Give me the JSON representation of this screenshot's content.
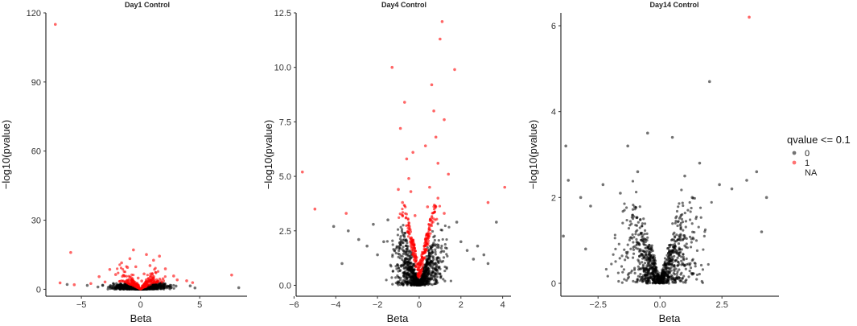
{
  "legend": {
    "title": "qvalue <= 0.1",
    "entries": [
      {
        "label": "0",
        "color": "#000000"
      },
      {
        "label": "1",
        "color": "#ff0000"
      },
      {
        "label": "NA",
        "color": null
      }
    ]
  },
  "colors": {
    "sig0": "#000000",
    "sig1": "#ff0000"
  },
  "chart_data": [
    {
      "type": "scatter",
      "title": "Day1 Control",
      "xlabel": "Beta",
      "ylabel": "−log10(pvalue)",
      "xlim": [
        -8,
        9
      ],
      "ylim": [
        -3,
        120
      ],
      "xticks": [
        -5,
        0,
        5
      ],
      "xtick_labels": [
        "−5",
        "0",
        "5"
      ],
      "yticks": [
        0,
        30,
        60,
        90,
        120
      ],
      "ytick_labels": [
        "0",
        "30",
        "60",
        "90",
        "120"
      ],
      "points_black": [
        [
          -3.2,
          1.8
        ],
        [
          -2.5,
          1.5
        ],
        [
          -1.8,
          1.2
        ],
        [
          2.0,
          1.6
        ],
        [
          3.0,
          1.4
        ],
        [
          4.2,
          1.5
        ],
        [
          4.6,
          0.6
        ],
        [
          -4.5,
          1.7
        ],
        [
          -6.2,
          2.1
        ],
        [
          8.3,
          0.7
        ],
        [
          -3.6,
          1.0
        ],
        [
          1.2,
          0.8
        ],
        [
          -0.8,
          0.9
        ],
        [
          0.7,
          1.1
        ],
        [
          2.6,
          0.9
        ]
      ],
      "points_red": [
        [
          -7.2,
          115
        ],
        [
          -5.9,
          16
        ],
        [
          -4.2,
          2.5
        ],
        [
          -3.5,
          5.5
        ],
        [
          -2.6,
          8.6
        ],
        [
          -2.1,
          6.4
        ],
        [
          -1.6,
          11.5
        ],
        [
          -1.1,
          9.5
        ],
        [
          -0.9,
          13.3
        ],
        [
          -0.6,
          17.1
        ],
        [
          -0.4,
          9.8
        ],
        [
          -0.2,
          4.9
        ],
        [
          0.3,
          6.7
        ],
        [
          0.5,
          15.1
        ],
        [
          0.8,
          10.3
        ],
        [
          1.1,
          12.6
        ],
        [
          1.3,
          7.2
        ],
        [
          1.6,
          14.4
        ],
        [
          2.1,
          8.9
        ],
        [
          2.8,
          5.8
        ],
        [
          3.1,
          4.1
        ],
        [
          3.9,
          3.7
        ],
        [
          4.4,
          2.9
        ],
        [
          7.7,
          6.2
        ],
        [
          -5.6,
          2.0
        ],
        [
          -6.8,
          2.8
        ],
        [
          -3.0,
          3.2
        ],
        [
          -1.4,
          5.8
        ],
        [
          0.1,
          3.6
        ],
        [
          1.9,
          4.6
        ]
      ],
      "density": {
        "x_extent": [
          -6.5,
          5.0
        ],
        "y_max_black": 3,
        "y_max_red": 12,
        "seed": 11
      }
    },
    {
      "type": "scatter",
      "title": "Day4 Control",
      "xlabel": "Beta",
      "ylabel": "−log10(pvalue)",
      "xlim": [
        -5.9,
        4.4
      ],
      "ylim": [
        -0.5,
        12.5
      ],
      "xticks": [
        -6,
        -4,
        -2,
        0,
        2,
        4
      ],
      "xtick_labels": [
        "−6",
        "−4",
        "−2",
        "0",
        "2",
        "4"
      ],
      "yticks": [
        0.0,
        2.5,
        5.0,
        7.5,
        10.0,
        12.5
      ],
      "ytick_labels": [
        "0.0",
        "2.5",
        "5.0",
        "7.5",
        "10.0",
        "12.5"
      ],
      "points_black": [
        [
          -4.1,
          2.7
        ],
        [
          -3.4,
          2.5
        ],
        [
          -2.9,
          2.1
        ],
        [
          -2.5,
          1.8
        ],
        [
          -2.2,
          2.8
        ],
        [
          -2.0,
          1.4
        ],
        [
          -1.7,
          2.0
        ],
        [
          2.0,
          2.0
        ],
        [
          2.3,
          1.6
        ],
        [
          2.6,
          1.2
        ],
        [
          2.8,
          1.8
        ],
        [
          3.1,
          1.4
        ],
        [
          3.3,
          1.0
        ],
        [
          3.7,
          2.9
        ],
        [
          -3.7,
          1.0
        ],
        [
          1.8,
          2.9
        ],
        [
          -1.5,
          3.0
        ]
      ],
      "points_red": [
        [
          -5.6,
          5.2
        ],
        [
          -5.0,
          3.5
        ],
        [
          -3.5,
          3.3
        ],
        [
          -1.3,
          10.0
        ],
        [
          -0.9,
          7.2
        ],
        [
          -0.7,
          8.4
        ],
        [
          -0.6,
          5.8
        ],
        [
          -0.5,
          4.9
        ],
        [
          -0.4,
          4.3
        ],
        [
          -0.8,
          3.8
        ],
        [
          -0.2,
          3.2
        ],
        [
          0.6,
          9.2
        ],
        [
          0.7,
          8.0
        ],
        [
          0.8,
          6.8
        ],
        [
          0.9,
          5.6
        ],
        [
          1.0,
          11.3
        ],
        [
          1.1,
          12.1
        ],
        [
          1.2,
          7.6
        ],
        [
          1.7,
          9.9
        ],
        [
          0.5,
          4.5
        ],
        [
          0.4,
          3.6
        ],
        [
          0.9,
          4.0
        ],
        [
          1.2,
          3.3
        ],
        [
          3.3,
          3.8
        ],
        [
          4.1,
          4.5
        ],
        [
          0.3,
          6.4
        ],
        [
          1.4,
          5.1
        ],
        [
          -0.3,
          6.1
        ],
        [
          0.6,
          3.1
        ],
        [
          -1.0,
          4.4
        ]
      ],
      "density": {
        "x_extent": [
          -3.0,
          3.2
        ],
        "y_max_black": 3,
        "y_max_red": 3,
        "seed": 22
      }
    },
    {
      "type": "scatter",
      "title": "Day14 Control",
      "xlabel": "Beta",
      "ylabel": "−log10(pvalue)",
      "xlim": [
        -4.0,
        4.8
      ],
      "ylim": [
        -0.3,
        6.3
      ],
      "xticks": [
        -2.5,
        0.0,
        2.5
      ],
      "xtick_labels": [
        "−2.5",
        "0.0",
        "2.5"
      ],
      "yticks": [
        0,
        2,
        4,
        6
      ],
      "ytick_labels": [
        "0",
        "2",
        "4",
        "6"
      ],
      "points_black": [
        [
          -3.8,
          3.2
        ],
        [
          -3.9,
          1.1
        ],
        [
          -3.7,
          2.4
        ],
        [
          -3.2,
          2.0
        ],
        [
          -2.8,
          1.8
        ],
        [
          -2.3,
          2.3
        ],
        [
          -1.6,
          2.1
        ],
        [
          -1.3,
          3.2
        ],
        [
          -0.5,
          3.5
        ],
        [
          0.5,
          3.4
        ],
        [
          1.0,
          2.5
        ],
        [
          1.6,
          2.8
        ],
        [
          2.0,
          4.7
        ],
        [
          2.4,
          2.3
        ],
        [
          2.9,
          2.2
        ],
        [
          3.5,
          2.4
        ],
        [
          3.9,
          2.6
        ],
        [
          4.3,
          2.0
        ],
        [
          -3.0,
          0.8
        ],
        [
          4.1,
          1.2
        ],
        [
          -0.9,
          2.6
        ],
        [
          1.3,
          2.0
        ]
      ],
      "points_red": [
        [
          3.6,
          6.2
        ]
      ],
      "density": {
        "x_extent": [
          -3.6,
          4.2
        ],
        "y_max_black": 2.4,
        "y_max_red": 0,
        "seed": 33
      }
    }
  ]
}
